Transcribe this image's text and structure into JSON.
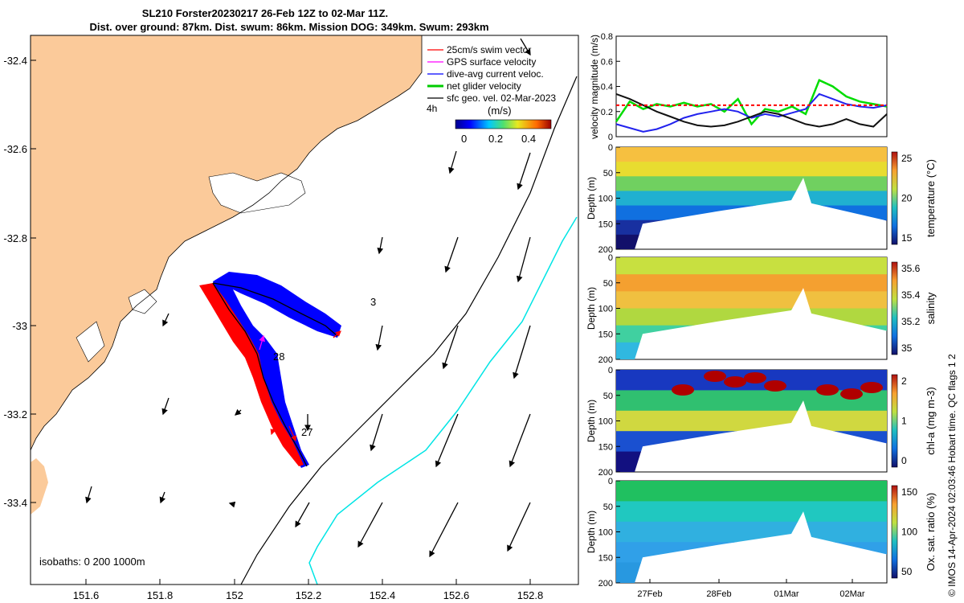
{
  "title_line1": "SL210 Forster20230217 26-Feb 12Z to 02-Mar 11Z.",
  "title_line2": "Dist. over ground: 87km. Dist. swum: 86km. Mission DOG: 349km. Swum: 293km",
  "map": {
    "x_ticks": [
      "151.6",
      "151.8",
      "152",
      "152.2",
      "152.4",
      "152.6",
      "152.8"
    ],
    "y_ticks": [
      "-32.4",
      "-32.6",
      "-32.8",
      "-33",
      "-33.2",
      "-33.4"
    ],
    "isobath_label": "isobaths: 0   200  1000m",
    "legend": [
      {
        "label": "25cm/s swim vector",
        "color": "#ff0000"
      },
      {
        "label": "GPS surface velocity",
        "color": "#ff00ff"
      },
      {
        "label": "dive-avg current veloc.",
        "color": "#0000ff"
      },
      {
        "label": "net glider velocity",
        "color": "#00cc00"
      },
      {
        "label": "sfc geo. vel. 02-Mar-2023",
        "color": "#000000"
      }
    ],
    "legend_extra": "4h",
    "colorbar_unit": "(m/s)",
    "colorbar_ticks": [
      "0",
      "0.2",
      "0.4"
    ],
    "day_labels": [
      "3",
      "28",
      "27"
    ],
    "colors": {
      "land": "#fbca9a",
      "track_blue": "#0000ff",
      "track_red": "#ff0000",
      "isobath_1000": "#00e5e5"
    }
  },
  "copyright": "© IMOS 14-Apr-2024 02:03:46 Hobart time. QC flags 1  2",
  "chart_data": [
    {
      "type": "line",
      "ylabel": "velocity magnitude (m/s)",
      "ylim": [
        0,
        0.8
      ],
      "yticks": [
        "0",
        "0.2",
        "0.4",
        "0.6",
        "0.8"
      ],
      "series": [
        {
          "color": "#00dd00",
          "x": [
            0,
            0.05,
            0.1,
            0.15,
            0.2,
            0.25,
            0.3,
            0.35,
            0.4,
            0.45,
            0.5,
            0.55,
            0.6,
            0.65,
            0.7,
            0.75,
            0.8,
            0.85,
            0.9,
            0.95,
            1.0
          ],
          "values": [
            0.12,
            0.28,
            0.22,
            0.26,
            0.24,
            0.27,
            0.24,
            0.26,
            0.2,
            0.3,
            0.1,
            0.22,
            0.2,
            0.24,
            0.18,
            0.45,
            0.4,
            0.32,
            0.28,
            0.26,
            0.24
          ]
        },
        {
          "color": "#2222ee",
          "x": [
            0,
            0.05,
            0.1,
            0.15,
            0.2,
            0.25,
            0.3,
            0.35,
            0.4,
            0.45,
            0.5,
            0.55,
            0.6,
            0.65,
            0.7,
            0.75,
            0.8,
            0.85,
            0.9,
            0.95,
            1.0
          ],
          "values": [
            0.1,
            0.07,
            0.04,
            0.06,
            0.1,
            0.15,
            0.18,
            0.2,
            0.22,
            0.2,
            0.15,
            0.18,
            0.16,
            0.19,
            0.22,
            0.34,
            0.3,
            0.26,
            0.24,
            0.23,
            0.25
          ]
        },
        {
          "color": "#111111",
          "x": [
            0,
            0.05,
            0.1,
            0.15,
            0.2,
            0.25,
            0.3,
            0.35,
            0.4,
            0.45,
            0.5,
            0.55,
            0.6,
            0.65,
            0.7,
            0.75,
            0.8,
            0.85,
            0.9,
            0.95,
            1.0
          ],
          "values": [
            0.34,
            0.3,
            0.25,
            0.2,
            0.16,
            0.12,
            0.09,
            0.08,
            0.09,
            0.12,
            0.16,
            0.2,
            0.18,
            0.14,
            0.1,
            0.08,
            0.1,
            0.14,
            0.1,
            0.08,
            0.18
          ]
        },
        {
          "color": "#ff0000",
          "dashed": true,
          "x": [
            0,
            1.0
          ],
          "values": [
            0.25,
            0.25
          ]
        }
      ]
    },
    {
      "type": "heatmap",
      "ylabel": "Depth (m)",
      "yticks": [
        "0",
        "50",
        "100",
        "150",
        "200"
      ],
      "clabel": "temperature (°C)",
      "cticks": [
        "15",
        "20",
        "25"
      ],
      "surface_color": "#f0a030",
      "layers": [
        "#f6c040",
        "#e8dc30",
        "#70d060",
        "#20b0d0",
        "#1070e0",
        "#1830a0",
        "#12106a"
      ]
    },
    {
      "type": "heatmap",
      "ylabel": "Depth (m)",
      "yticks": [
        "0",
        "50",
        "100",
        "150",
        "200"
      ],
      "clabel": "salinity",
      "cticks": [
        "35",
        "35.2",
        "35.4",
        "35.6"
      ],
      "layers": [
        "#c8e040",
        "#f4a030",
        "#f0c040",
        "#b0d840",
        "#40d0a0",
        "#30b8e0"
      ]
    },
    {
      "type": "heatmap",
      "ylabel": "Depth (m)",
      "yticks": [
        "0",
        "50",
        "100",
        "150",
        "200"
      ],
      "clabel": "chl-a (mg m-3)",
      "cticks": [
        "0",
        "1",
        "2"
      ],
      "layers": [
        "#1838c0",
        "#30c070",
        "#d0d840",
        "#1a50d0",
        "#121080"
      ]
    },
    {
      "type": "heatmap",
      "ylabel": "Depth (m)",
      "yticks": [
        "0",
        "50",
        "100",
        "150",
        "200"
      ],
      "clabel": "Ox. sat. ratio (%)",
      "cticks": [
        "50",
        "100",
        "150"
      ],
      "layers": [
        "#20c060",
        "#20c8c0",
        "#30b0e0",
        "#30a0e8",
        "#2898e0"
      ],
      "xticks": [
        "27Feb",
        "28Feb",
        "01Mar",
        "02Mar"
      ]
    }
  ]
}
